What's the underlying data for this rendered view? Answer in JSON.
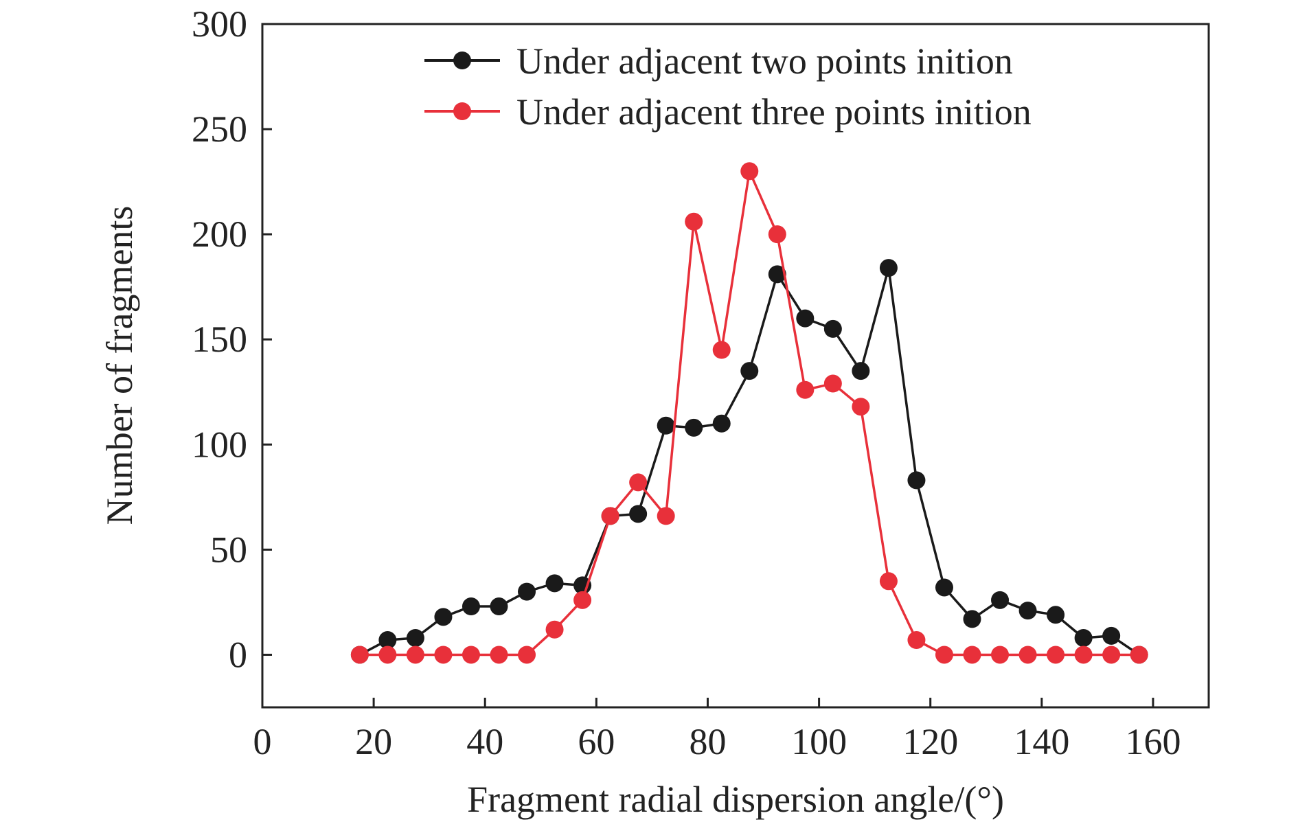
{
  "chart_data": {
    "type": "line",
    "title": "",
    "xlabel": "Fragment radial dispersion angle/(°)",
    "ylabel": "Number of fragments",
    "xlim": [
      0,
      170
    ],
    "ylim": [
      -25,
      300
    ],
    "xticks": [
      0,
      20,
      40,
      60,
      80,
      100,
      120,
      140,
      160
    ],
    "yticks": [
      0,
      50,
      100,
      150,
      200,
      250,
      300
    ],
    "grid": false,
    "legend_position": "top-right",
    "x": [
      17.5,
      22.5,
      27.5,
      32.5,
      37.5,
      42.5,
      47.5,
      52.5,
      57.5,
      62.5,
      67.5,
      72.5,
      77.5,
      82.5,
      87.5,
      92.5,
      97.5,
      102.5,
      107.5,
      112.5,
      117.5,
      122.5,
      127.5,
      132.5,
      137.5,
      142.5,
      147.5,
      152.5,
      157.5
    ],
    "series": [
      {
        "name": "Under adjacent two points inition",
        "color": "#1a1a1a",
        "values": [
          0,
          7,
          8,
          18,
          23,
          23,
          30,
          34,
          33,
          66,
          67,
          109,
          108,
          110,
          135,
          181,
          160,
          155,
          135,
          184,
          83,
          32,
          17,
          26,
          21,
          19,
          8,
          9,
          0
        ]
      },
      {
        "name": "Under adjacent three points inition",
        "color": "#e8303a",
        "values": [
          0,
          0,
          0,
          0,
          0,
          0,
          0,
          12,
          26,
          66,
          82,
          66,
          206,
          145,
          230,
          200,
          126,
          129,
          118,
          35,
          7,
          0,
          0,
          0,
          0,
          0,
          0,
          0,
          0
        ]
      }
    ]
  }
}
